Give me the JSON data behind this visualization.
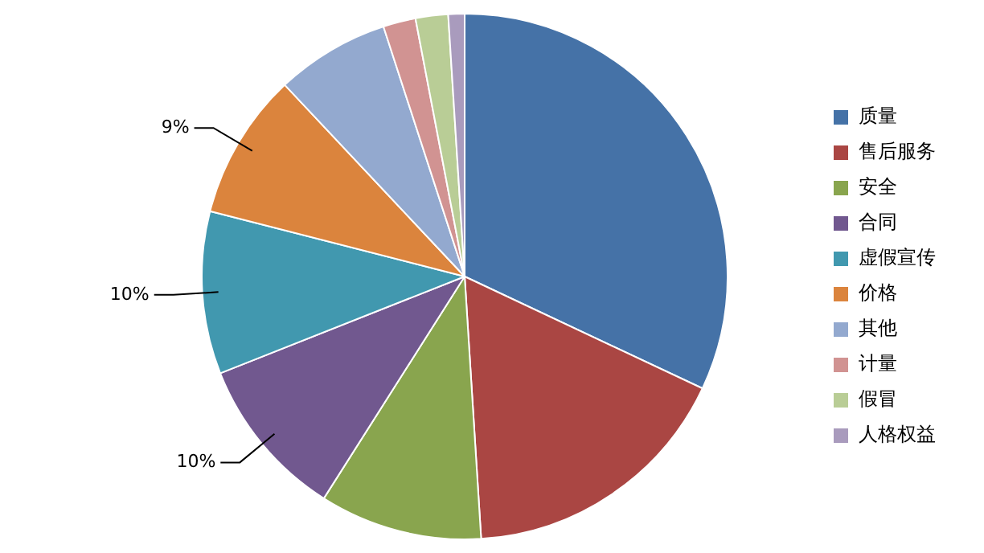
{
  "chart_data": {
    "type": "pie",
    "categories": [
      "质量",
      "售后服务",
      "安全",
      "合同",
      "虚假宣传",
      "价格",
      "其他",
      "计量",
      "假冒",
      "人格权益"
    ],
    "values": [
      32,
      17,
      10,
      10,
      10,
      9,
      7,
      2,
      2,
      1
    ],
    "colors": [
      "#4572a7",
      "#aa4643",
      "#89a54e",
      "#71588f",
      "#4198af",
      "#db843d",
      "#93a9cf",
      "#d19392",
      "#b9cd96",
      "#a99bbd"
    ],
    "value_labels": [
      null,
      null,
      null,
      "10%",
      "10%",
      "9%",
      null,
      null,
      null,
      null
    ],
    "legend": "right"
  }
}
